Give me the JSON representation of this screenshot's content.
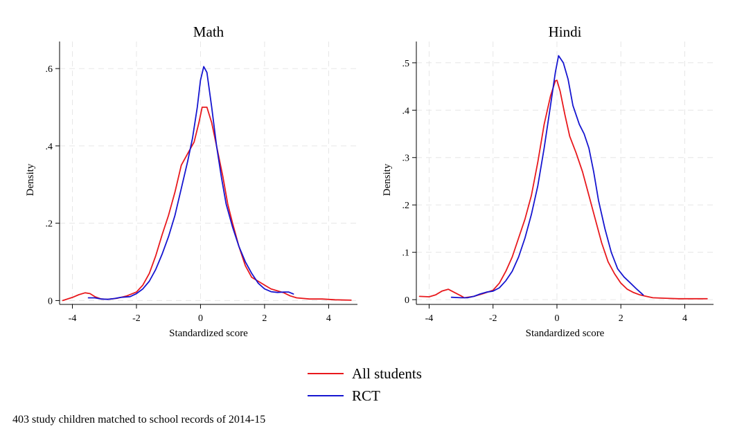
{
  "colors": {
    "all_students": "#e8181c",
    "rct": "#1515d0",
    "grid": "#e6e6e6"
  },
  "legend": {
    "items": [
      {
        "label": "All students",
        "color": "#e8181c"
      },
      {
        "label": "RCT",
        "color": "#1515d0"
      }
    ]
  },
  "note": "403 study children matched to school records of 2014-15",
  "chart_data": [
    {
      "type": "line",
      "title": "Math",
      "xlabel": "Standardized score",
      "ylabel": "Density",
      "xlim": [
        -4.4,
        4.9
      ],
      "ylim": [
        -0.01,
        0.67
      ],
      "xticks": [
        -4,
        -2,
        0,
        2,
        4
      ],
      "xtick_labels": [
        "-4",
        "-2",
        "0",
        "2",
        "4"
      ],
      "yticks": [
        0,
        0.2,
        0.4,
        0.6
      ],
      "ytick_labels": [
        "0",
        ".2",
        ".4",
        ".6"
      ],
      "grid": true,
      "series": [
        {
          "name": "All students",
          "color": "#e8181c",
          "points": [
            [
              -4.3,
              0.0
            ],
            [
              -4.0,
              0.008
            ],
            [
              -3.8,
              0.015
            ],
            [
              -3.6,
              0.02
            ],
            [
              -3.45,
              0.018
            ],
            [
              -3.3,
              0.01
            ],
            [
              -3.1,
              0.004
            ],
            [
              -2.9,
              0.003
            ],
            [
              -2.6,
              0.006
            ],
            [
              -2.3,
              0.012
            ],
            [
              -2.0,
              0.022
            ],
            [
              -1.8,
              0.04
            ],
            [
              -1.6,
              0.07
            ],
            [
              -1.4,
              0.115
            ],
            [
              -1.2,
              0.17
            ],
            [
              -1.0,
              0.22
            ],
            [
              -0.8,
              0.28
            ],
            [
              -0.6,
              0.35
            ],
            [
              -0.4,
              0.38
            ],
            [
              -0.2,
              0.41
            ],
            [
              -0.05,
              0.46
            ],
            [
              0.05,
              0.5
            ],
            [
              0.2,
              0.5
            ],
            [
              0.35,
              0.46
            ],
            [
              0.5,
              0.4
            ],
            [
              0.7,
              0.32
            ],
            [
              0.85,
              0.25
            ],
            [
              1.0,
              0.2
            ],
            [
              1.2,
              0.14
            ],
            [
              1.4,
              0.09
            ],
            [
              1.6,
              0.06
            ],
            [
              1.8,
              0.05
            ],
            [
              2.0,
              0.04
            ],
            [
              2.2,
              0.03
            ],
            [
              2.4,
              0.025
            ],
            [
              2.6,
              0.02
            ],
            [
              2.8,
              0.012
            ],
            [
              3.0,
              0.007
            ],
            [
              3.4,
              0.004
            ],
            [
              3.8,
              0.004
            ],
            [
              4.2,
              0.002
            ],
            [
              4.7,
              0.001
            ]
          ]
        },
        {
          "name": "RCT",
          "color": "#1515d0",
          "points": [
            [
              -3.5,
              0.007
            ],
            [
              -3.3,
              0.007
            ],
            [
              -3.1,
              0.004
            ],
            [
              -2.9,
              0.003
            ],
            [
              -2.7,
              0.005
            ],
            [
              -2.5,
              0.008
            ],
            [
              -2.2,
              0.01
            ],
            [
              -2.0,
              0.018
            ],
            [
              -1.8,
              0.03
            ],
            [
              -1.6,
              0.05
            ],
            [
              -1.4,
              0.08
            ],
            [
              -1.2,
              0.12
            ],
            [
              -1.0,
              0.165
            ],
            [
              -0.8,
              0.22
            ],
            [
              -0.6,
              0.29
            ],
            [
              -0.4,
              0.36
            ],
            [
              -0.25,
              0.42
            ],
            [
              -0.1,
              0.5
            ],
            [
              0.0,
              0.57
            ],
            [
              0.1,
              0.605
            ],
            [
              0.2,
              0.59
            ],
            [
              0.35,
              0.5
            ],
            [
              0.5,
              0.4
            ],
            [
              0.65,
              0.32
            ],
            [
              0.8,
              0.25
            ],
            [
              1.0,
              0.19
            ],
            [
              1.2,
              0.14
            ],
            [
              1.4,
              0.1
            ],
            [
              1.6,
              0.07
            ],
            [
              1.8,
              0.045
            ],
            [
              2.0,
              0.03
            ],
            [
              2.2,
              0.023
            ],
            [
              2.4,
              0.021
            ],
            [
              2.6,
              0.022
            ],
            [
              2.75,
              0.022
            ],
            [
              2.9,
              0.017
            ]
          ]
        }
      ]
    },
    {
      "type": "line",
      "title": "Hindi",
      "xlabel": "Standardized score",
      "ylabel": "Density",
      "xlim": [
        -4.4,
        4.9
      ],
      "ylim": [
        -0.01,
        0.545
      ],
      "xticks": [
        -4,
        -2,
        0,
        2,
        4
      ],
      "xtick_labels": [
        "-4",
        "-2",
        "0",
        "2",
        "4"
      ],
      "yticks": [
        0,
        0.1,
        0.2,
        0.3,
        0.4,
        0.5
      ],
      "ytick_labels": [
        "0",
        ".1",
        ".2",
        ".3",
        ".4",
        ".5"
      ],
      "grid": true,
      "series": [
        {
          "name": "All students",
          "color": "#e8181c",
          "points": [
            [
              -4.3,
              0.007
            ],
            [
              -4.0,
              0.006
            ],
            [
              -3.8,
              0.01
            ],
            [
              -3.6,
              0.018
            ],
            [
              -3.4,
              0.022
            ],
            [
              -3.2,
              0.015
            ],
            [
              -3.0,
              0.008
            ],
            [
              -2.9,
              0.004
            ],
            [
              -2.6,
              0.007
            ],
            [
              -2.3,
              0.013
            ],
            [
              -2.0,
              0.02
            ],
            [
              -1.8,
              0.035
            ],
            [
              -1.6,
              0.06
            ],
            [
              -1.4,
              0.09
            ],
            [
              -1.2,
              0.13
            ],
            [
              -1.0,
              0.17
            ],
            [
              -0.8,
              0.22
            ],
            [
              -0.6,
              0.29
            ],
            [
              -0.4,
              0.37
            ],
            [
              -0.2,
              0.43
            ],
            [
              -0.05,
              0.462
            ],
            [
              0.0,
              0.463
            ],
            [
              0.1,
              0.44
            ],
            [
              0.25,
              0.39
            ],
            [
              0.4,
              0.345
            ],
            [
              0.6,
              0.31
            ],
            [
              0.8,
              0.27
            ],
            [
              1.0,
              0.22
            ],
            [
              1.2,
              0.17
            ],
            [
              1.4,
              0.12
            ],
            [
              1.6,
              0.08
            ],
            [
              1.8,
              0.055
            ],
            [
              2.0,
              0.035
            ],
            [
              2.2,
              0.022
            ],
            [
              2.4,
              0.015
            ],
            [
              2.6,
              0.01
            ],
            [
              2.8,
              0.007
            ],
            [
              3.0,
              0.004
            ],
            [
              3.4,
              0.003
            ],
            [
              3.8,
              0.002
            ],
            [
              4.2,
              0.002
            ],
            [
              4.7,
              0.002
            ]
          ]
        },
        {
          "name": "RCT",
          "color": "#1515d0",
          "points": [
            [
              -3.3,
              0.005
            ],
            [
              -3.0,
              0.004
            ],
            [
              -2.8,
              0.004
            ],
            [
              -2.6,
              0.007
            ],
            [
              -2.4,
              0.012
            ],
            [
              -2.2,
              0.016
            ],
            [
              -2.0,
              0.018
            ],
            [
              -1.8,
              0.025
            ],
            [
              -1.6,
              0.04
            ],
            [
              -1.4,
              0.06
            ],
            [
              -1.2,
              0.09
            ],
            [
              -1.0,
              0.13
            ],
            [
              -0.8,
              0.18
            ],
            [
              -0.6,
              0.24
            ],
            [
              -0.4,
              0.32
            ],
            [
              -0.2,
              0.41
            ],
            [
              -0.05,
              0.48
            ],
            [
              0.05,
              0.515
            ],
            [
              0.2,
              0.5
            ],
            [
              0.35,
              0.465
            ],
            [
              0.5,
              0.41
            ],
            [
              0.7,
              0.37
            ],
            [
              0.85,
              0.35
            ],
            [
              1.0,
              0.32
            ],
            [
              1.15,
              0.27
            ],
            [
              1.3,
              0.21
            ],
            [
              1.5,
              0.15
            ],
            [
              1.7,
              0.1
            ],
            [
              1.9,
              0.065
            ],
            [
              2.1,
              0.048
            ],
            [
              2.3,
              0.035
            ],
            [
              2.5,
              0.022
            ],
            [
              2.7,
              0.01
            ]
          ]
        }
      ]
    }
  ]
}
